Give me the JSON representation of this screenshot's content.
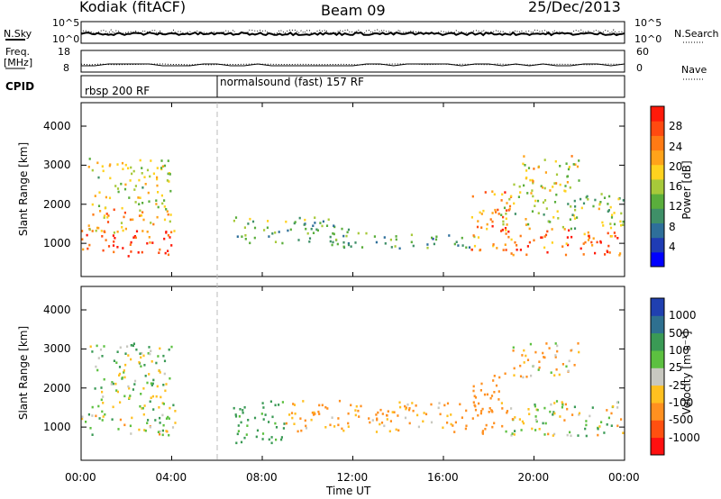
{
  "header": {
    "station": "Kodiak (fitACF)",
    "beam": "Beam 09",
    "date": "25/Dec/2013"
  },
  "strip1": {
    "left_label": "N.Sky",
    "right_label": "N.Search",
    "left_ticks": [
      "10^5",
      "10^0"
    ],
    "right_ticks": [
      "10^5",
      "10^0"
    ]
  },
  "strip2": {
    "left_label_1": "Freq.",
    "left_label_2": "[MHz]",
    "right_label": "Nave",
    "left_ticks": [
      "18",
      "8"
    ],
    "right_ticks": [
      "60",
      "0"
    ]
  },
  "cpid": {
    "label": "CPID",
    "segments": [
      {
        "text": "rbsp 200 RF",
        "start_hour": 0
      },
      {
        "text": "normalsound (fast) 157 RF",
        "start_hour": 6
      }
    ]
  },
  "chart_data": [
    {
      "type": "heatmap",
      "panel": "power",
      "ylabel": "Slant Range [km]",
      "xlabel": "",
      "xlim_hours": [
        0,
        24
      ],
      "ylim": [
        150,
        4600
      ],
      "yticks": [
        1000,
        2000,
        3000,
        4000
      ],
      "colorbar_label": "Power [dB]",
      "colorbar_ticks": [
        "4",
        "8",
        "12",
        "16",
        "20",
        "24",
        "28"
      ],
      "colormap": [
        "#0000ff",
        "#1f3cb4",
        "#2e6f9a",
        "#3f9068",
        "#5aae3c",
        "#a7c93a",
        "#ffd21f",
        "#ffa31a",
        "#ff7a14",
        "#ff4a10",
        "#ff1a0a"
      ],
      "clim": [
        0,
        30
      ],
      "regions": [
        {
          "hours": [
            0.0,
            4.2
          ],
          "range_km": [
            700,
            1400
          ],
          "value": 27
        },
        {
          "hours": [
            0.2,
            4.1
          ],
          "range_km": [
            1300,
            1900
          ],
          "value": 20
        },
        {
          "hours": [
            0.3,
            4.0
          ],
          "range_km": [
            1900,
            3200
          ],
          "value": 16
        },
        {
          "hours": [
            6.6,
            11.8
          ],
          "range_km": [
            1000,
            1700
          ],
          "value": 12
        },
        {
          "hours": [
            11.0,
            17.5
          ],
          "range_km": [
            900,
            1300
          ],
          "value": 10
        },
        {
          "hours": [
            17.2,
            19.0
          ],
          "range_km": [
            800,
            2400
          ],
          "value": 24
        },
        {
          "hours": [
            18.5,
            24.0
          ],
          "range_km": [
            700,
            1400
          ],
          "value": 25
        },
        {
          "hours": [
            18.5,
            24.0
          ],
          "range_km": [
            1400,
            2300
          ],
          "value": 14
        },
        {
          "hours": [
            19.0,
            22.0
          ],
          "range_km": [
            2300,
            3300
          ],
          "value": 17
        }
      ]
    },
    {
      "type": "heatmap",
      "panel": "velocity",
      "ylabel": "Slant Range [km]",
      "xlabel": "Time UT",
      "xlim_hours": [
        0,
        24
      ],
      "xticks": [
        "00:00",
        "04:00",
        "08:00",
        "12:00",
        "16:00",
        "20:00",
        "00:00"
      ],
      "ylim": [
        150,
        4600
      ],
      "yticks": [
        1000,
        2000,
        3000,
        4000
      ],
      "colorbar_label": "Velocity [m s⁻¹]",
      "colorbar_ticks": [
        "1000",
        "500",
        "100",
        "25",
        "-25",
        "-100",
        "-500",
        "-1000"
      ],
      "colormap": [
        "#2040b0",
        "#2e7090",
        "#3a9a55",
        "#5cc040",
        "#c8c8c0",
        "#ffc020",
        "#ff9020",
        "#ff5010",
        "#ff1010"
      ],
      "regions": [
        {
          "hours": [
            0.0,
            4.2
          ],
          "range_km": [
            800,
            1700
          ],
          "value": 0
        },
        {
          "hours": [
            0.3,
            4.0
          ],
          "range_km": [
            1700,
            3200
          ],
          "value": 50
        },
        {
          "hours": [
            6.6,
            9.0
          ],
          "range_km": [
            600,
            1700
          ],
          "value": 200
        },
        {
          "hours": [
            9.0,
            17.0
          ],
          "range_km": [
            900,
            1700
          ],
          "value": -150
        },
        {
          "hours": [
            17.2,
            18.8
          ],
          "range_km": [
            800,
            2400
          ],
          "value": -300
        },
        {
          "hours": [
            18.5,
            24.0
          ],
          "range_km": [
            800,
            1700
          ],
          "value": 0
        },
        {
          "hours": [
            19.0,
            22.0
          ],
          "range_km": [
            2300,
            3200
          ],
          "value": -100
        }
      ]
    }
  ]
}
